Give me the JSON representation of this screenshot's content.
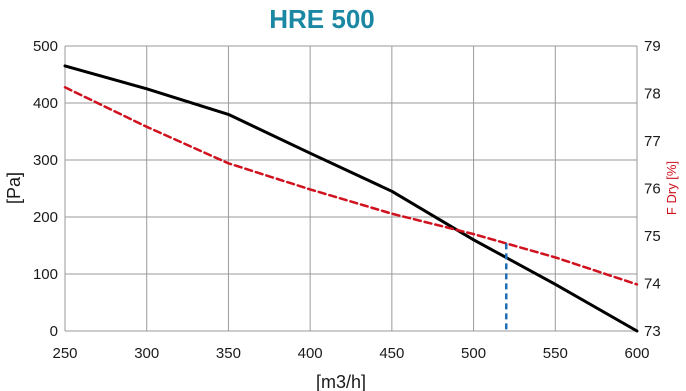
{
  "chart_data": {
    "type": "line",
    "title": "HRE 500",
    "xlabel": "[m3/h]",
    "ylabel": "[Pa]",
    "y2label": "F Dry [%]",
    "xlim": [
      250,
      600
    ],
    "ylim": [
      0,
      500
    ],
    "y2lim": [
      73,
      79
    ],
    "x_ticks": [
      "250",
      "300",
      "350",
      "400",
      "450",
      "500",
      "550",
      "600"
    ],
    "y_ticks": [
      "0",
      "100",
      "200",
      "300",
      "400",
      "500"
    ],
    "y2_ticks": [
      "73",
      "74",
      "75",
      "76",
      "77",
      "78",
      "79"
    ],
    "grid": true,
    "series": [
      {
        "axis": "left",
        "color": "#000000",
        "style": "solid",
        "x": [
          250,
          300,
          350,
          400,
          450,
          500,
          550,
          600
        ],
        "y": [
          465,
          425,
          380,
          312,
          245,
          160,
          82,
          0
        ]
      },
      {
        "axis": "right",
        "color": "#d0121f",
        "style": "dashed",
        "x": [
          250,
          300,
          350,
          400,
          450,
          500,
          550,
          600
        ],
        "y": [
          78.13,
          77.3,
          76.53,
          75.98,
          75.47,
          75.04,
          74.55,
          73.98
        ]
      }
    ],
    "annotations": [
      {
        "type": "vertical-marker",
        "x": 520,
        "color": "#1f6db5",
        "style": "dashed"
      }
    ],
    "colors": {
      "title": "#1a87a3",
      "y2label": "#d0121f",
      "grid": "#9a9a9a"
    }
  }
}
